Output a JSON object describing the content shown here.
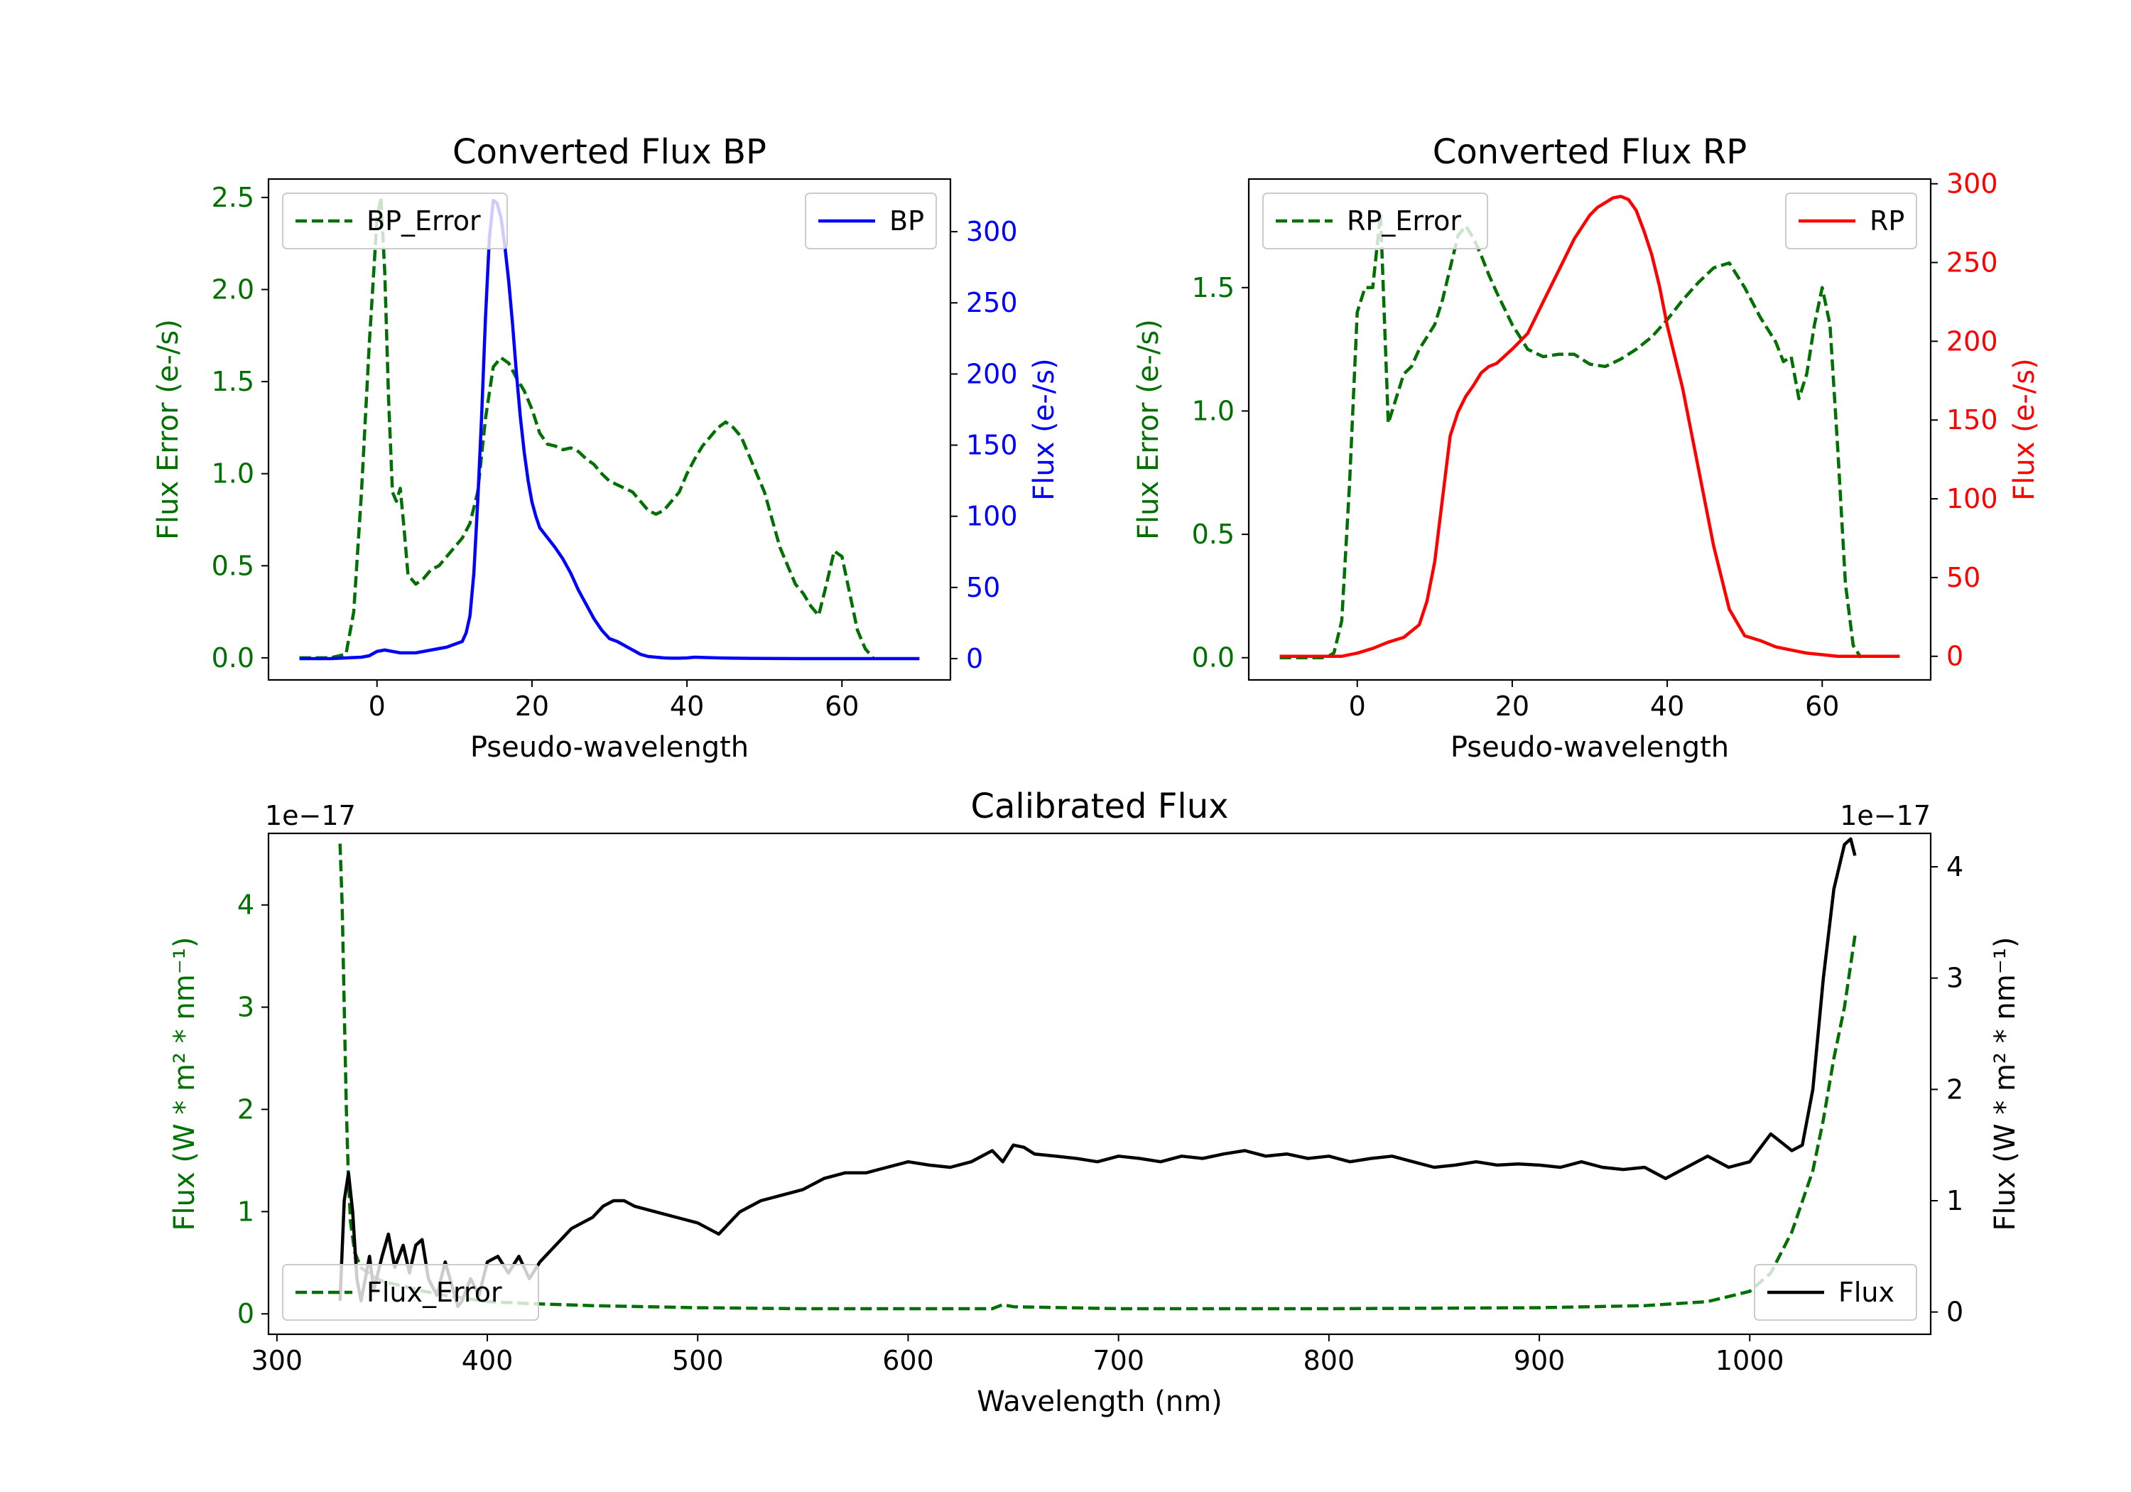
{
  "colors": {
    "bp": "#0000ff",
    "rp": "#ff0000",
    "error": "#007000",
    "flux": "#000000"
  },
  "chart_data": [
    {
      "type": "line",
      "title": "Converted Flux BP",
      "xlabel": "Pseudo-wavelength",
      "ylabel_left": "Flux Error (e-/s)",
      "ylabel_right": "Flux (e-/s)",
      "xlim": [
        -14,
        74
      ],
      "ylim_left": [
        -0.12,
        2.6
      ],
      "ylim_right": [
        -15,
        337
      ],
      "xticks": [
        "0",
        "20",
        "40",
        "60"
      ],
      "yticks_left": [
        "0.0",
        "0.5",
        "1.0",
        "1.5",
        "2.0",
        "2.5"
      ],
      "yticks_right": [
        "0",
        "50",
        "100",
        "150",
        "200",
        "250",
        "300"
      ],
      "legend_left": "upper left",
      "legend_right": "upper right",
      "series": [
        {
          "name": "BP_Error",
          "axis": "left",
          "style": "dashed",
          "color": "#007000",
          "x": [
            -10,
            -6,
            -4,
            -3,
            -2,
            -1,
            0,
            0.5,
            1,
            1.5,
            2,
            2.5,
            3,
            3.5,
            4,
            5,
            6,
            7,
            8,
            9,
            10,
            11,
            12,
            13,
            14,
            15,
            16,
            17,
            18,
            19,
            20,
            21,
            22,
            23,
            24,
            25,
            26,
            27,
            28,
            29,
            30,
            31,
            32,
            33,
            34,
            35,
            36,
            37,
            38,
            39,
            40,
            41,
            42,
            43,
            44,
            45,
            46,
            47,
            48,
            49,
            50,
            51,
            52,
            53,
            54,
            55,
            56,
            57,
            58,
            59,
            60,
            61,
            62,
            63,
            64
          ],
          "values": [
            0,
            0,
            0.02,
            0.25,
            0.9,
            1.7,
            2.38,
            2.5,
            2.1,
            1.4,
            0.9,
            0.85,
            0.92,
            0.7,
            0.45,
            0.4,
            0.43,
            0.48,
            0.5,
            0.55,
            0.6,
            0.65,
            0.73,
            0.9,
            1.3,
            1.58,
            1.63,
            1.6,
            1.52,
            1.45,
            1.35,
            1.22,
            1.16,
            1.15,
            1.13,
            1.14,
            1.12,
            1.08,
            1.05,
            1.0,
            0.96,
            0.94,
            0.92,
            0.9,
            0.85,
            0.8,
            0.78,
            0.8,
            0.85,
            0.9,
            1.0,
            1.08,
            1.15,
            1.2,
            1.25,
            1.28,
            1.25,
            1.2,
            1.1,
            1.0,
            0.9,
            0.75,
            0.6,
            0.5,
            0.4,
            0.35,
            0.28,
            0.23,
            0.4,
            0.58,
            0.55,
            0.35,
            0.15,
            0.05,
            0.0
          ]
        },
        {
          "name": "BP",
          "axis": "right",
          "style": "solid",
          "color": "#0000ff",
          "x": [
            -10,
            -8,
            -6,
            -4,
            -2,
            -1,
            0,
            1,
            2,
            3,
            4,
            5,
            6,
            7,
            8,
            9,
            10,
            11,
            11.5,
            12,
            12.5,
            13,
            13.5,
            14,
            14.5,
            15,
            15.5,
            16,
            16.5,
            17,
            17.5,
            18,
            18.5,
            19,
            19.5,
            20,
            20.5,
            21,
            22,
            23,
            24,
            25,
            26,
            27,
            28,
            29,
            30,
            31,
            32,
            33,
            34,
            35,
            36,
            37,
            38,
            39,
            40,
            41,
            42,
            44,
            46,
            48,
            50,
            55,
            60,
            65,
            70
          ],
          "values": [
            0,
            0,
            0,
            0.5,
            1,
            2,
            5,
            6,
            5,
            4,
            4,
            4,
            5,
            6,
            7,
            8,
            10,
            12,
            18,
            30,
            60,
            110,
            170,
            240,
            295,
            322,
            320,
            310,
            290,
            265,
            235,
            200,
            170,
            145,
            125,
            110,
            100,
            92,
            85,
            78,
            70,
            60,
            48,
            38,
            28,
            20,
            14,
            12,
            9,
            6,
            3,
            1.5,
            1,
            0.5,
            0.3,
            0.3,
            0.5,
            1,
            0.8,
            0.5,
            0.3,
            0.2,
            0.1,
            0,
            0,
            0,
            0
          ]
        }
      ]
    },
    {
      "type": "line",
      "title": "Converted Flux RP",
      "xlabel": "Pseudo-wavelength",
      "ylabel_left": "Flux Error (e-/s)",
      "ylabel_right": "Flux (e-/s)",
      "xlim": [
        -14,
        74
      ],
      "ylim_left": [
        -0.09,
        1.94
      ],
      "ylim_right": [
        -15,
        303
      ],
      "xticks": [
        "0",
        "20",
        "40",
        "60"
      ],
      "yticks_left": [
        "0.0",
        "0.5",
        "1.0",
        "1.5"
      ],
      "yticks_right": [
        "0",
        "50",
        "100",
        "150",
        "200",
        "250",
        "300"
      ],
      "legend_left": "upper left",
      "legend_right": "upper right",
      "series": [
        {
          "name": "RP_Error",
          "axis": "left",
          "style": "dashed",
          "color": "#007000",
          "x": [
            -10,
            -6,
            -4,
            -3,
            -2,
            -1,
            0,
            1,
            2,
            3,
            4,
            5,
            6,
            7,
            8,
            9,
            10,
            11,
            12,
            13,
            14,
            15,
            16,
            17,
            18,
            20,
            22,
            24,
            26,
            28,
            30,
            32,
            34,
            36,
            38,
            40,
            42,
            44,
            46,
            48,
            50,
            52,
            54,
            55,
            56,
            57,
            58,
            59,
            60,
            61,
            62,
            63,
            64,
            65
          ],
          "values": [
            0,
            0,
            0,
            0.02,
            0.15,
            0.7,
            1.4,
            1.5,
            1.5,
            1.8,
            0.95,
            1.05,
            1.15,
            1.18,
            1.25,
            1.3,
            1.35,
            1.45,
            1.58,
            1.71,
            1.75,
            1.7,
            1.63,
            1.55,
            1.48,
            1.35,
            1.25,
            1.22,
            1.23,
            1.23,
            1.19,
            1.18,
            1.21,
            1.25,
            1.3,
            1.37,
            1.45,
            1.52,
            1.58,
            1.6,
            1.5,
            1.38,
            1.28,
            1.2,
            1.22,
            1.05,
            1.15,
            1.35,
            1.5,
            1.35,
            0.85,
            0.3,
            0.05,
            0
          ]
        },
        {
          "name": "RP",
          "axis": "right",
          "style": "solid",
          "color": "#ff0000",
          "x": [
            -10,
            -6,
            -4,
            -2,
            0,
            2,
            4,
            6,
            8,
            9,
            10,
            11,
            12,
            13,
            14,
            15,
            16,
            17,
            18,
            20,
            22,
            24,
            26,
            28,
            30,
            31,
            32,
            33,
            34,
            35,
            36,
            37,
            38,
            39,
            40,
            42,
            44,
            46,
            48,
            50,
            52,
            54,
            56,
            58,
            60,
            62,
            64,
            66,
            70
          ],
          "values": [
            0,
            0,
            0,
            0,
            2,
            5,
            9,
            12,
            20,
            35,
            60,
            100,
            140,
            155,
            165,
            172,
            180,
            184,
            186,
            195,
            205,
            225,
            245,
            265,
            280,
            285,
            288,
            291,
            292,
            290,
            283,
            270,
            255,
            235,
            210,
            170,
            120,
            70,
            30,
            13,
            10,
            6,
            4,
            2,
            1,
            0,
            0,
            0,
            0
          ]
        }
      ]
    },
    {
      "type": "line",
      "title": "Calibrated Flux",
      "xlabel": "Wavelength (nm)",
      "ylabel_left": "Flux (W * m² * nm⁻¹)",
      "ylabel_right": "Flux (W * m² * nm⁻¹)",
      "offset_left": "1e−17",
      "offset_right": "1e−17",
      "xlim": [
        296,
        1086
      ],
      "ylim_left": [
        -0.2,
        4.7
      ],
      "ylim_right": [
        -0.2,
        4.3
      ],
      "xticks": [
        "300",
        "400",
        "500",
        "600",
        "700",
        "800",
        "900",
        "1000"
      ],
      "yticks_left": [
        "0",
        "1",
        "2",
        "3",
        "4"
      ],
      "yticks_right": [
        "0",
        "1",
        "2",
        "3",
        "4"
      ],
      "legend_left": "lower left",
      "legend_right": "lower right",
      "series": [
        {
          "name": "Flux_Error",
          "axis": "left",
          "style": "dashed",
          "color": "#007000",
          "x": [
            330,
            331,
            332,
            333,
            334,
            335,
            337,
            340,
            345,
            350,
            360,
            370,
            380,
            390,
            400,
            420,
            450,
            500,
            550,
            600,
            640,
            645,
            650,
            700,
            800,
            900,
            950,
            980,
            1000,
            1010,
            1020,
            1030,
            1035,
            1040,
            1045,
            1050
          ],
          "values": [
            4.6,
            4.0,
            3.0,
            2.0,
            1.3,
            0.9,
            0.6,
            0.45,
            0.38,
            0.32,
            0.27,
            0.22,
            0.18,
            0.15,
            0.12,
            0.1,
            0.08,
            0.06,
            0.05,
            0.05,
            0.05,
            0.09,
            0.07,
            0.05,
            0.05,
            0.06,
            0.08,
            0.12,
            0.22,
            0.4,
            0.8,
            1.4,
            1.9,
            2.5,
            3.0,
            3.7
          ]
        },
        {
          "name": "Flux",
          "axis": "right",
          "style": "solid",
          "color": "#000000",
          "x": [
            330,
            332,
            334,
            336,
            338,
            340,
            342,
            344,
            346,
            350,
            353,
            356,
            360,
            363,
            366,
            369,
            372,
            376,
            380,
            383,
            386,
            388,
            392,
            396,
            400,
            405,
            410,
            415,
            420,
            425,
            430,
            440,
            445,
            450,
            455,
            460,
            465,
            470,
            480,
            490,
            500,
            505,
            510,
            515,
            520,
            530,
            540,
            550,
            560,
            570,
            580,
            590,
            600,
            610,
            620,
            630,
            640,
            645,
            650,
            655,
            660,
            670,
            680,
            690,
            700,
            710,
            720,
            730,
            740,
            750,
            760,
            770,
            780,
            790,
            800,
            810,
            820,
            830,
            840,
            850,
            860,
            870,
            880,
            890,
            900,
            910,
            920,
            930,
            940,
            950,
            960,
            970,
            980,
            990,
            1000,
            1010,
            1020,
            1025,
            1030,
            1035,
            1040,
            1045,
            1048,
            1050
          ],
          "values": [
            0.1,
            1.0,
            1.25,
            0.9,
            0.3,
            0.1,
            0.3,
            0.5,
            0.2,
            0.5,
            0.7,
            0.4,
            0.6,
            0.35,
            0.6,
            0.65,
            0.3,
            0.15,
            0.45,
            0.25,
            0.05,
            0.1,
            0.3,
            0.15,
            0.45,
            0.5,
            0.35,
            0.5,
            0.3,
            0.45,
            0.55,
            0.75,
            0.8,
            0.85,
            0.95,
            1.0,
            1.0,
            0.95,
            0.9,
            0.85,
            0.8,
            0.75,
            0.7,
            0.8,
            0.9,
            1.0,
            1.05,
            1.1,
            1.2,
            1.25,
            1.25,
            1.3,
            1.35,
            1.32,
            1.3,
            1.35,
            1.45,
            1.35,
            1.5,
            1.48,
            1.42,
            1.4,
            1.38,
            1.35,
            1.4,
            1.38,
            1.35,
            1.4,
            1.38,
            1.42,
            1.45,
            1.4,
            1.42,
            1.38,
            1.4,
            1.35,
            1.38,
            1.4,
            1.35,
            1.3,
            1.32,
            1.35,
            1.32,
            1.33,
            1.32,
            1.3,
            1.35,
            1.3,
            1.28,
            1.3,
            1.2,
            1.3,
            1.4,
            1.3,
            1.35,
            1.6,
            1.45,
            1.5,
            2.0,
            3.0,
            3.8,
            4.2,
            4.25,
            4.1
          ]
        }
      ]
    }
  ]
}
